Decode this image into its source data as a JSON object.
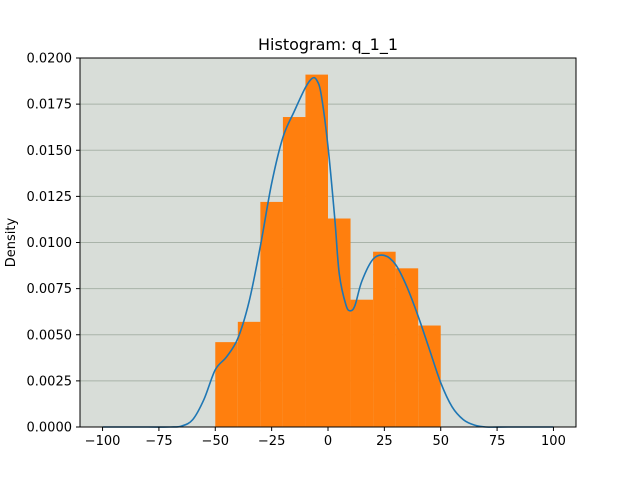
{
  "chart_data": {
    "type": "histogram",
    "title": "Histogram: q_1_1",
    "xlabel": "",
    "ylabel": "Density",
    "xlim": [
      -110,
      110
    ],
    "ylim": [
      0,
      0.02
    ],
    "xticks": [
      -100,
      -75,
      -50,
      -25,
      0,
      25,
      50,
      75,
      100
    ],
    "xtick_labels": [
      "−100",
      "−75",
      "−50",
      "−25",
      "0",
      "25",
      "50",
      "75",
      "100"
    ],
    "yticks": [
      0.0,
      0.0025,
      0.005,
      0.0075,
      0.01,
      0.0125,
      0.015,
      0.0175,
      0.02
    ],
    "ytick_labels": [
      "0.0000",
      "0.0025",
      "0.0050",
      "0.0075",
      "0.0100",
      "0.0125",
      "0.0150",
      "0.0175",
      "0.0200"
    ],
    "grid": "horizontal",
    "colors": {
      "plot_background": "#d8ddd8",
      "bars": "#ff7f0e",
      "density_line": "#1f77b4",
      "grid": "#a9b3a9"
    },
    "bins": [
      {
        "x0": -50,
        "x1": -40,
        "density": 0.0046
      },
      {
        "x0": -40,
        "x1": -30,
        "density": 0.0057
      },
      {
        "x0": -30,
        "x1": -20,
        "density": 0.0122
      },
      {
        "x0": -20,
        "x1": -10,
        "density": 0.0168
      },
      {
        "x0": -10,
        "x1": 0,
        "density": 0.0191
      },
      {
        "x0": 0,
        "x1": 10,
        "density": 0.0113
      },
      {
        "x0": 10,
        "x1": 20,
        "density": 0.0069
      },
      {
        "x0": 20,
        "x1": 30,
        "density": 0.0095
      },
      {
        "x0": 30,
        "x1": 40,
        "density": 0.0086
      },
      {
        "x0": 40,
        "x1": 50,
        "density": 0.0055
      }
    ],
    "density_curve": {
      "x": [
        -100,
        -80,
        -70,
        -65,
        -60,
        -55,
        -50,
        -45,
        -40,
        -35,
        -30,
        -25,
        -20,
        -15,
        -10,
        -7,
        -5,
        -3,
        0,
        3,
        5,
        8,
        10,
        12,
        15,
        20,
        25,
        30,
        35,
        40,
        45,
        50,
        55,
        60,
        65,
        70,
        80,
        100
      ],
      "y": [
        0.0,
        0.0,
        0.0,
        5e-05,
        0.0004,
        0.0015,
        0.0031,
        0.0038,
        0.0048,
        0.0068,
        0.0098,
        0.0132,
        0.0157,
        0.0171,
        0.0184,
        0.0189,
        0.0188,
        0.018,
        0.0152,
        0.0113,
        0.0083,
        0.0066,
        0.0063,
        0.0066,
        0.0079,
        0.0091,
        0.0093,
        0.0088,
        0.0076,
        0.006,
        0.0042,
        0.0024,
        0.0011,
        0.0004,
        0.0001,
        0.0,
        0.0,
        0.0
      ]
    }
  }
}
